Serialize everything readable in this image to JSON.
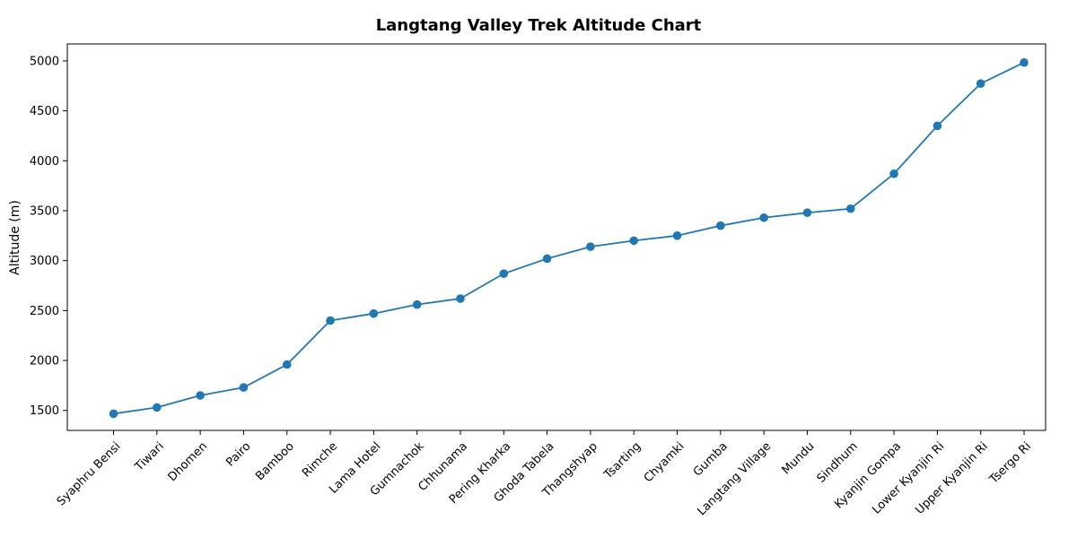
{
  "chart_data": {
    "type": "line",
    "title": "Langtang Valley Trek Altitude Chart",
    "xlabel": "",
    "ylabel": "Altitude (m)",
    "ylim": [
      1300,
      5170
    ],
    "yticks": [
      1500,
      2000,
      2500,
      3000,
      3500,
      4000,
      4500,
      5000
    ],
    "grid": false,
    "categories": [
      "Syaphru Bensi",
      "Tiwari",
      "Dhomen",
      "Pairo",
      "Bamboo",
      "Rimche",
      "Lama Hotel",
      "Gumnachok",
      "Chhunama",
      "Pering Kharka",
      "Ghoda Tabela",
      "Thangshyap",
      "Tsarting",
      "Chyamki",
      "Gumba",
      "Langtang Village",
      "Mundu",
      "Sindhum",
      "Kyanjin Gompa",
      "Lower Kyanjin Ri",
      "Upper Kyanjin Ri",
      "Tsergo Ri"
    ],
    "series": [
      {
        "color": "#1f77b4",
        "values": [
          1467,
          1530,
          1650,
          1730,
          1960,
          2400,
          2470,
          2560,
          2620,
          2870,
          3020,
          3140,
          3200,
          3250,
          3350,
          3430,
          3480,
          3520,
          3870,
          4350,
          4773,
          4984
        ]
      }
    ]
  }
}
